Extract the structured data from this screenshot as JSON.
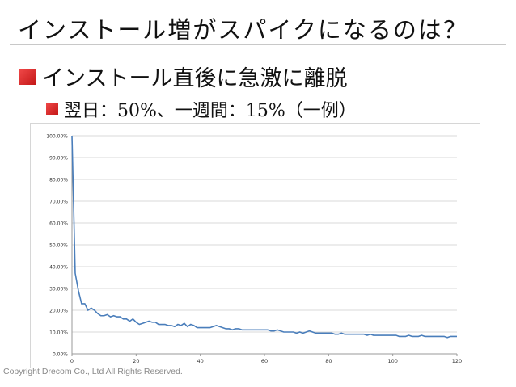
{
  "slide": {
    "title": "インストール増がスパイクになるのは？",
    "bullet1": "インストール直後に急激に離脱",
    "bullet2": "翌日：50%、一週間：15%（一例）",
    "copyright": "Copyright Drecom Co., Ltd All Rights Reserved."
  },
  "colors": {
    "accent_bullet": "#d42a2a",
    "line": "#4a7ebb",
    "grid": "#d9d9d9"
  },
  "chart_data": {
    "type": "line",
    "title": "",
    "xlabel": "",
    "ylabel": "",
    "xlim": [
      0,
      120
    ],
    "ylim": [
      0,
      100
    ],
    "grid": "horizontal",
    "legend": "none",
    "x_ticks": [
      "0",
      "20",
      "40",
      "60",
      "80",
      "100",
      "120"
    ],
    "y_ticks": [
      "0.00%",
      "10.00%",
      "20.00%",
      "30.00%",
      "40.00%",
      "50.00%",
      "60.00%",
      "70.00%",
      "80.00%",
      "90.00%",
      "100.00%"
    ],
    "x": [
      0,
      1,
      2,
      3,
      4,
      5,
      6,
      7,
      8,
      9,
      10,
      11,
      12,
      13,
      14,
      15,
      16,
      17,
      18,
      19,
      20,
      21,
      22,
      23,
      24,
      25,
      26,
      27,
      28,
      29,
      30,
      31,
      32,
      33,
      34,
      35,
      36,
      37,
      38,
      39,
      40,
      41,
      42,
      43,
      44,
      45,
      46,
      47,
      48,
      49,
      50,
      51,
      52,
      53,
      54,
      55,
      56,
      57,
      58,
      59,
      60,
      61,
      62,
      63,
      64,
      65,
      66,
      67,
      68,
      69,
      70,
      71,
      72,
      73,
      74,
      75,
      76,
      77,
      78,
      79,
      80,
      81,
      82,
      83,
      84,
      85,
      86,
      87,
      88,
      89,
      90,
      91,
      92,
      93,
      94,
      95,
      96,
      97,
      98,
      99,
      100,
      101,
      102,
      103,
      104,
      105,
      106,
      107,
      108,
      109,
      110,
      111,
      112,
      113,
      114,
      115,
      116,
      117,
      118,
      119,
      120
    ],
    "values": [
      100,
      37,
      29,
      23,
      23,
      20,
      21,
      20,
      18.5,
      17.5,
      17.5,
      18,
      17,
      17.5,
      17,
      17,
      16,
      16,
      15,
      16,
      14.5,
      13.5,
      14,
      14.5,
      15,
      14.5,
      14.5,
      13.5,
      13.5,
      13.5,
      13,
      13,
      12.5,
      13.5,
      13,
      14,
      12.5,
      13.5,
      13,
      12,
      12,
      12,
      12,
      12,
      12.5,
      13,
      12.5,
      12,
      11.5,
      11.5,
      11,
      11.5,
      11.5,
      11,
      11,
      11,
      11,
      11,
      11,
      11,
      11,
      11,
      10.5,
      10.5,
      11,
      10.5,
      10,
      10,
      10,
      10,
      9.5,
      10,
      9.5,
      10,
      10.5,
      10,
      9.5,
      9.5,
      9.5,
      9.5,
      9.5,
      9.5,
      9,
      9,
      9.5,
      9,
      9,
      9,
      9,
      9,
      9,
      9,
      8.5,
      9,
      8.5,
      8.5,
      8.5,
      8.5,
      8.5,
      8.5,
      8.5,
      8.5,
      8,
      8,
      8,
      8.5,
      8,
      8,
      8,
      8.5,
      8,
      8,
      8,
      8,
      8,
      8,
      8,
      7.5,
      8,
      8,
      8
    ]
  }
}
